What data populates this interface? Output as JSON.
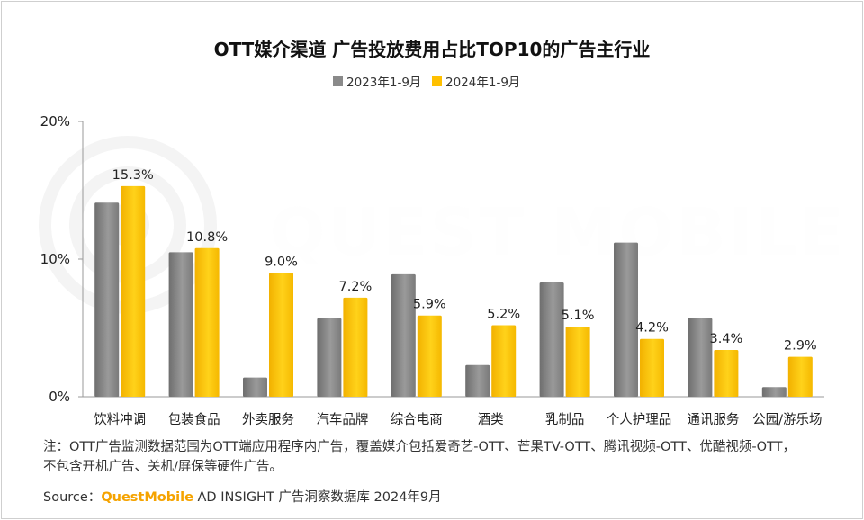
{
  "chart_data": {
    "type": "bar",
    "title": "OTT媒介渠道 广告投放费用占比TOP10的广告主行业",
    "categories": [
      "饮料冲调",
      "包装食品",
      "外卖服务",
      "汽车品牌",
      "综合电商",
      "酒类",
      "乳制品",
      "个人护理品",
      "通讯服务",
      "公园/游乐场"
    ],
    "series": [
      {
        "name": "2023年1-9月",
        "color": "#8a8a8a",
        "values": [
          14.1,
          10.5,
          1.4,
          5.7,
          8.9,
          2.3,
          8.3,
          11.2,
          5.7,
          0.7
        ]
      },
      {
        "name": "2024年1-9月",
        "color": "#ffc000",
        "values": [
          15.3,
          10.8,
          9.0,
          7.2,
          5.9,
          5.2,
          5.1,
          4.2,
          3.4,
          2.9
        ]
      }
    ],
    "data_labels": [
      "15.3%",
      "10.8%",
      "9.0%",
      "7.2%",
      "5.9%",
      "5.2%",
      "5.1%",
      "4.2%",
      "3.4%",
      "2.9%"
    ],
    "yticks": [
      0,
      10,
      20
    ],
    "ytick_labels": [
      "0%",
      "10%",
      "20%"
    ],
    "ylim": [
      0,
      20
    ],
    "legend_position": "top-center",
    "grid": false
  },
  "watermark": "QUEST MOBILE",
  "footer": {
    "note": "注：OTT广告监测数据范围为OTT端应用程序内广告，覆盖媒介包括爱奇艺-OTT、芒果TV-OTT、腾讯视频-OTT、优酷视频-OTT，不包含开机广告、关机/屏保等硬件广告。",
    "source_prefix": "Source：",
    "source_brand": "QuestMobile",
    "source_rest": " AD INSIGHT 广告洞察数据库 2024年9月"
  }
}
